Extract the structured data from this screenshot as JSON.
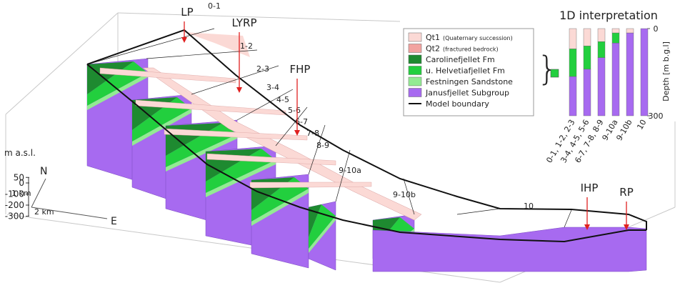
{
  "profiles": [
    "0-1",
    "1-2",
    "2-3",
    "3-4",
    "4-5",
    "5-6",
    "6-7",
    "7-8",
    "8-9",
    "9-10a",
    "9-10b",
    "10"
  ],
  "boreholes": [
    "LP",
    "LYRP",
    "FHP",
    "IHP",
    "RP"
  ],
  "elevation_axis": {
    "label": "m a.s.l.",
    "ticks": [
      50,
      0,
      -100,
      -200,
      -300
    ]
  },
  "orientation": {
    "north": "N",
    "north_scale": "1 km",
    "east": "E",
    "east_scale": "2 km"
  },
  "legend": {
    "items": [
      {
        "label": "Qt1",
        "note": "(Quaternary succession)",
        "color": "#fbd9d5"
      },
      {
        "label": "Qt2",
        "note": "(fractured bedrock)",
        "color": "#f2a3a0"
      },
      {
        "label": "Carolinefjellet Fm",
        "color": "#1e8a30"
      },
      {
        "label": "u. Helvetiafjellet Fm",
        "color": "#22cf3e"
      },
      {
        "label": "Festningen Sandstone",
        "color": "#93eb93"
      },
      {
        "label": "Janusfjellet Subgroup",
        "color": "#a76af0"
      },
      {
        "label": "Model boundary",
        "color": "#111111"
      }
    ]
  },
  "interpretation": {
    "type": "bar",
    "title": "1D interpretation",
    "ylabel": "Depth [m b.g.l]",
    "categories": [
      "0-1, 1-2, 2-3",
      "3-4, 4-5, 5-6",
      "6-7, 7-8, 8-9",
      "9-10a",
      "9-10b",
      "10"
    ],
    "series": [
      {
        "color": "#fbd9d5",
        "values": [
          70,
          60,
          45,
          15,
          15,
          0
        ]
      },
      {
        "color": "#22cf3e",
        "values": [
          95,
          80,
          55,
          35,
          0,
          0
        ]
      },
      {
        "color": "#a76af0",
        "values": [
          135,
          160,
          200,
          250,
          285,
          300
        ]
      }
    ],
    "ylim": [
      0,
      300
    ],
    "yticks": [
      0,
      300
    ]
  }
}
